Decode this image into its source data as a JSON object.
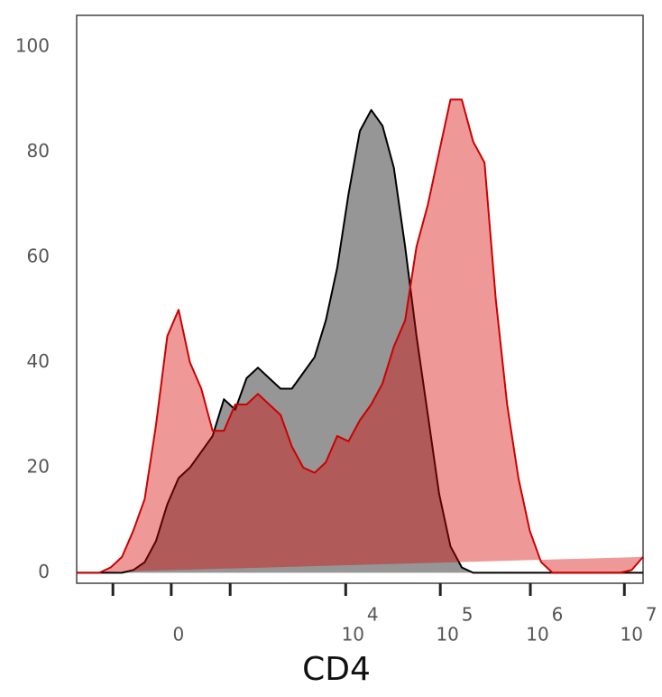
{
  "chart_data": {
    "type": "area",
    "xlabel": "CD4",
    "x": [
      0,
      2,
      4,
      6,
      8,
      10,
      12,
      14,
      16,
      18,
      20,
      22,
      24,
      26,
      28,
      30,
      32,
      34,
      36,
      38,
      40,
      42,
      44,
      46,
      48,
      50,
      52,
      54,
      56,
      58,
      60,
      62,
      64,
      66,
      68,
      70,
      72,
      74,
      76,
      78,
      80,
      82,
      84,
      86,
      88,
      90,
      92,
      94,
      96,
      98,
      100
    ],
    "series": [
      {
        "color": "#000000",
        "fill": "#969696",
        "values": [
          0,
          0,
          0,
          0,
          0,
          0.5,
          2,
          6,
          13,
          18,
          20,
          23,
          26,
          33,
          31,
          37,
          39,
          37,
          35,
          35,
          38,
          41,
          48,
          58,
          72,
          84,
          88,
          85,
          77,
          62,
          45,
          30,
          15,
          5,
          1,
          0,
          0,
          0,
          0,
          0,
          0,
          0,
          0,
          0,
          0,
          0,
          0,
          0,
          0,
          0,
          0
        ]
      },
      {
        "color": "#cc0000",
        "fill": "rgba(213,4,4,0.41)",
        "values": [
          0,
          0,
          0,
          1,
          3,
          8,
          14,
          28,
          45,
          50,
          40,
          35,
          27,
          27,
          32,
          32,
          34,
          32,
          30,
          24,
          20,
          19,
          21,
          26,
          25,
          29,
          32,
          36,
          43,
          48,
          62,
          70,
          80,
          90,
          90,
          82,
          78,
          52,
          32,
          18,
          8,
          2,
          0,
          0,
          0,
          0,
          0,
          0,
          0,
          0.5,
          3
        ]
      }
    ],
    "xlim": [
      0,
      100
    ],
    "xticks": [
      {
        "value": 6.4,
        "label": null
      },
      {
        "value": 16.7,
        "label": "0"
      },
      {
        "value": 27.1,
        "label": null
      },
      {
        "value": 47.5,
        "label": "10",
        "exponent": "4"
      },
      {
        "value": 64.2,
        "label": "10",
        "exponent": "5"
      },
      {
        "value": 80.1,
        "label": "10",
        "exponent": "6"
      },
      {
        "value": 96.7,
        "label": "10",
        "exponent": "7"
      }
    ],
    "ylim": [
      -2,
      106
    ],
    "yticks": [
      0,
      20,
      40,
      60,
      80,
      100
    ]
  }
}
